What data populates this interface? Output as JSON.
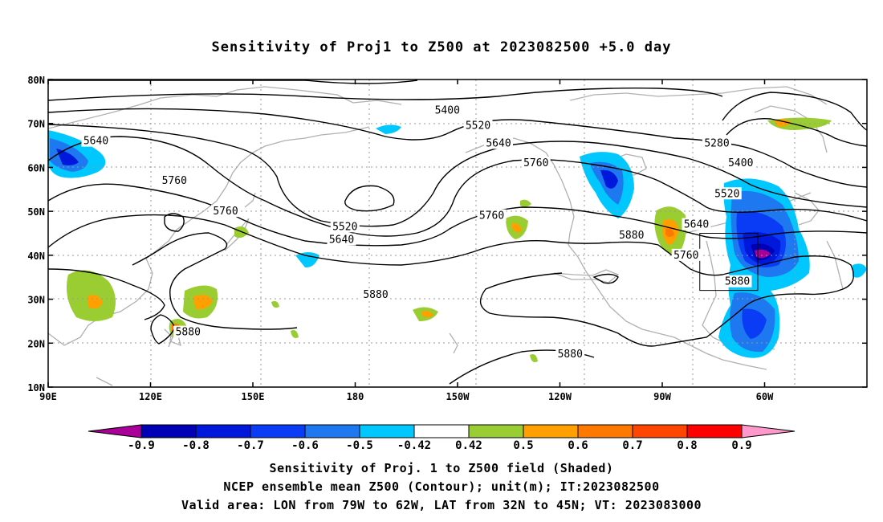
{
  "title": "Sensitivity of Proj1 to Z500 at 2023082500 +5.0 day",
  "map": {
    "lon_range": [
      90,
      330
    ],
    "lat_range": [
      10,
      80
    ],
    "lat_ticks": [
      {
        "value": 80,
        "label": "80N"
      },
      {
        "value": 70,
        "label": "70N"
      },
      {
        "value": 60,
        "label": "60N"
      },
      {
        "value": 50,
        "label": "50N"
      },
      {
        "value": 40,
        "label": "40N"
      },
      {
        "value": 30,
        "label": "30N"
      },
      {
        "value": 20,
        "label": "20N"
      },
      {
        "value": 10,
        "label": "10N"
      }
    ],
    "lon_ticks": [
      {
        "value": 90,
        "label": "90E"
      },
      {
        "value": 120,
        "label": "120E"
      },
      {
        "value": 150,
        "label": "150E"
      },
      {
        "value": 180,
        "label": "180"
      },
      {
        "value": 210,
        "label": "150W"
      },
      {
        "value": 240,
        "label": "120W"
      },
      {
        "value": 270,
        "label": "90W"
      },
      {
        "value": 300,
        "label": "60W"
      }
    ],
    "grid": true,
    "contour_labels": [
      {
        "text": "5400",
        "lon": 207,
        "lat": 73
      },
      {
        "text": "5520",
        "lon": 216,
        "lat": 69.5
      },
      {
        "text": "5640",
        "lon": 222,
        "lat": 65.5
      },
      {
        "text": "5760",
        "lon": 233,
        "lat": 61
      },
      {
        "text": "5280",
        "lon": 286,
        "lat": 65.5
      },
      {
        "text": "5400",
        "lon": 293,
        "lat": 61
      },
      {
        "text": "5520",
        "lon": 289,
        "lat": 54
      },
      {
        "text": "5640",
        "lon": 280,
        "lat": 47
      },
      {
        "text": "5760",
        "lon": 277,
        "lat": 40
      },
      {
        "text": "5880",
        "lon": 261,
        "lat": 44.5
      },
      {
        "text": "5880",
        "lon": 292,
        "lat": 34
      },
      {
        "text": "5640",
        "lon": 104,
        "lat": 66
      },
      {
        "text": "5760",
        "lon": 127,
        "lat": 57
      },
      {
        "text": "5760",
        "lon": 142,
        "lat": 50
      },
      {
        "text": "5520",
        "lon": 177,
        "lat": 46.5
      },
      {
        "text": "5640",
        "lon": 176,
        "lat": 43.5
      },
      {
        "text": "5760",
        "lon": 220,
        "lat": 49
      },
      {
        "text": "5880",
        "lon": 186,
        "lat": 31
      },
      {
        "text": "5880",
        "lon": 131,
        "lat": 22.5
      },
      {
        "text": "5880",
        "lon": 243,
        "lat": 17.5
      }
    ],
    "valid_box": {
      "lon_min": 281,
      "lon_max": 298,
      "lat_min": 32,
      "lat_max": 45
    }
  },
  "colorbar": {
    "levels": [
      "-0.9",
      "-0.8",
      "-0.7",
      "-0.6",
      "-0.5",
      "-0.42",
      "0.42",
      "0.5",
      "0.6",
      "0.7",
      "0.8",
      "0.9"
    ],
    "colors": [
      "#aa0099",
      "#0000b4",
      "#0018dc",
      "#0a3cf5",
      "#1e78f0",
      "#00c8ff",
      "#ffffff",
      "#9acd32",
      "#ffa000",
      "#ff7800",
      "#ff4600",
      "#ff0000",
      "#ff99cc"
    ]
  },
  "captions": {
    "line1": "Sensitivity of Proj. 1 to Z500 field (Shaded)",
    "line2": "NCEP ensemble mean Z500 (Contour); unit(m); IT:2023082500",
    "line3": "Valid area: LON from 79W to 62W, LAT from 32N to 45N; VT: 2023083000"
  }
}
